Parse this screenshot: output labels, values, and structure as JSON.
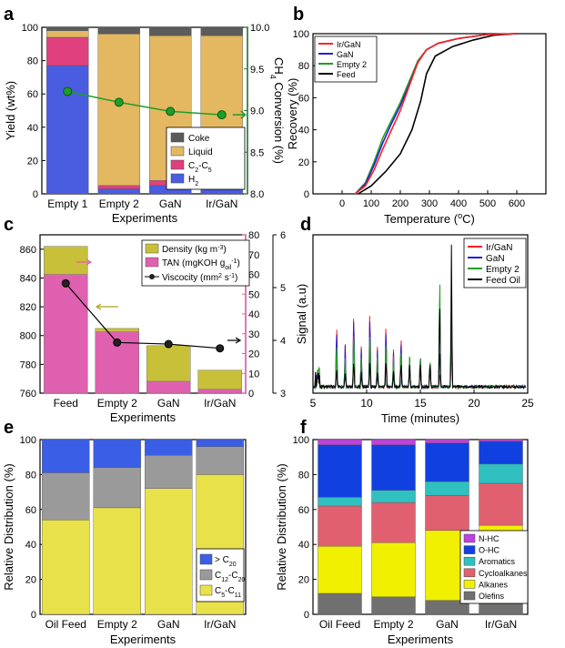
{
  "colors": {
    "coke": "#5b5b5b",
    "liquid": "#e3b860",
    "c2c5": "#e0407e",
    "h2": "#4a5ce0",
    "conv": "#1e9e28",
    "convAxis": "#1f7a3e",
    "irgan": "#ff2020",
    "gan": "#2020e0",
    "empty2": "#20a020",
    "feed": "#000000",
    "density": "#c8c038",
    "tan": "#e060b0",
    "visc": "#111111",
    "gt20": "#3b5ee6",
    "c12": "#9a9a9a",
    "c5": "#e9e14a",
    "nhc": "#c040e0",
    "ohc": "#1040e0",
    "arom": "#30c0c0",
    "cyclo": "#e06070",
    "alk": "#f0f000",
    "olef": "#707070"
  },
  "chart_data": [
    {
      "panel": "a",
      "type": "bar",
      "stacked": true,
      "xlabel": "Experiments",
      "ylabel": "Yield (wt%)",
      "y2label": "CH4 Conversion (%)",
      "categories": [
        "Empty 1",
        "Empty 2",
        "GaN",
        "Ir/GaN"
      ],
      "ylim": [
        0,
        100
      ],
      "y2lim": [
        8.0,
        10.0
      ],
      "yticks": [
        "0",
        "20",
        "40",
        "60",
        "80",
        "100"
      ],
      "y2ticks": [
        "8.0",
        "8.5",
        "9.0",
        "9.5",
        "10.0"
      ],
      "series": [
        {
          "name": "H2",
          "values": [
            77,
            3,
            5,
            5
          ]
        },
        {
          "name": "C2-C5",
          "values": [
            17,
            2,
            3,
            3
          ]
        },
        {
          "name": "Liquid",
          "values": [
            4,
            91,
            87,
            87
          ]
        },
        {
          "name": "Coke",
          "values": [
            2,
            4,
            5,
            5
          ]
        }
      ],
      "line": {
        "values": [
          9.23,
          9.1,
          8.99,
          8.95
        ]
      },
      "legend": [
        "Coke",
        "Liquid",
        "C2-C5",
        "H2"
      ]
    },
    {
      "panel": "b",
      "type": "line",
      "xlabel": "Temperature (°C)",
      "ylabel": "Recovery (%)",
      "xlim": [
        -100,
        700
      ],
      "ylim": [
        0,
        100
      ],
      "xticks": [
        "0",
        "100",
        "200",
        "300",
        "400",
        "500",
        "600"
      ],
      "yticks": [
        "0",
        "20",
        "40",
        "60",
        "80",
        "100"
      ],
      "series": [
        {
          "name": "Ir/GaN",
          "points": [
            [
              45,
              0
            ],
            [
              80,
              5
            ],
            [
              110,
              15
            ],
            [
              140,
              28
            ],
            [
              170,
              40
            ],
            [
              200,
              52
            ],
            [
              230,
              67
            ],
            [
              260,
              82
            ],
            [
              290,
              90
            ],
            [
              330,
              94
            ],
            [
              400,
              97
            ],
            [
              500,
              99.5
            ],
            [
              600,
              100
            ]
          ]
        },
        {
          "name": "GaN",
          "points": [
            [
              45,
              0
            ],
            [
              80,
              6
            ],
            [
              110,
              18
            ],
            [
              140,
              32
            ],
            [
              170,
              44
            ],
            [
              200,
              55
            ],
            [
              230,
              68
            ],
            [
              260,
              82
            ],
            [
              290,
              90
            ],
            [
              330,
              94
            ],
            [
              400,
              97
            ],
            [
              500,
              99.5
            ],
            [
              600,
              100
            ]
          ]
        },
        {
          "name": "Empty 2",
          "points": [
            [
              45,
              0
            ],
            [
              80,
              7
            ],
            [
              110,
              20
            ],
            [
              140,
              35
            ],
            [
              170,
              46
            ],
            [
              200,
              57
            ],
            [
              230,
              70
            ],
            [
              260,
              83
            ],
            [
              290,
              90
            ],
            [
              330,
              94
            ],
            [
              400,
              97
            ],
            [
              500,
              99.5
            ],
            [
              600,
              100
            ]
          ]
        },
        {
          "name": "Feed",
          "points": [
            [
              55,
              0
            ],
            [
              100,
              5
            ],
            [
              150,
              14
            ],
            [
              200,
              25
            ],
            [
              240,
              40
            ],
            [
              270,
              58
            ],
            [
              290,
              75
            ],
            [
              320,
              86
            ],
            [
              380,
              92
            ],
            [
              450,
              96
            ],
            [
              520,
              99
            ],
            [
              600,
              100
            ]
          ]
        }
      ]
    },
    {
      "panel": "c",
      "type": "bar",
      "xlabel": "Experiments",
      "ylabel": "",
      "ylim": [
        760,
        870
      ],
      "y2lim": [
        0,
        80
      ],
      "y3lim": [
        3,
        6
      ],
      "categories": [
        "Feed",
        "Empty 2",
        "GaN",
        "Ir/GaN"
      ],
      "yticks": [
        "760",
        "780",
        "800",
        "820",
        "840",
        "860"
      ],
      "y2ticks": [
        "0",
        "10",
        "20",
        "30",
        "40",
        "50",
        "60",
        "70",
        "80"
      ],
      "y3ticks": [
        "3",
        "4",
        "5",
        "6"
      ],
      "series": [
        {
          "name": "Density (kg m-3)",
          "values": [
            862,
            805,
            793,
            776
          ]
        },
        {
          "name": "TAN (mgKOH goil-1)",
          "values": [
            60,
            31,
            6,
            2
          ]
        },
        {
          "name": "Viscocity (mm2 s-1)",
          "values": [
            5.08,
            3.96,
            3.93,
            3.85
          ]
        }
      ]
    },
    {
      "panel": "d",
      "type": "line",
      "xlabel": "Time (minutes)",
      "ylabel": "Signal (a.u)",
      "xlim": [
        5,
        25
      ],
      "xticks": [
        "5",
        "10",
        "15",
        "20",
        "25"
      ],
      "series": [
        {
          "name": "Ir/GaN",
          "peaks": [
            [
              7.2,
              0.5
            ],
            [
              8.0,
              0.3
            ],
            [
              8.8,
              0.6
            ],
            [
              9.5,
              0.28
            ],
            [
              10.3,
              0.63
            ],
            [
              11.0,
              0.27
            ],
            [
              11.8,
              0.5
            ],
            [
              12.5,
              0.25
            ],
            [
              13.2,
              0.4
            ],
            [
              14.0,
              0.2
            ],
            [
              15.0,
              0.25
            ],
            [
              15.9,
              0.15
            ],
            [
              16.8,
              0.1
            ],
            [
              17.9,
              0.3
            ]
          ]
        },
        {
          "name": "GaN",
          "peaks": [
            [
              7.2,
              0.46
            ],
            [
              8.0,
              0.28
            ],
            [
              8.8,
              0.56
            ],
            [
              9.5,
              0.26
            ],
            [
              10.3,
              0.58
            ],
            [
              11.0,
              0.25
            ],
            [
              11.8,
              0.46
            ],
            [
              12.5,
              0.23
            ],
            [
              13.2,
              0.37
            ],
            [
              14.0,
              0.2
            ],
            [
              15.0,
              0.26
            ],
            [
              15.9,
              0.2
            ],
            [
              16.8,
              0.3
            ],
            [
              17.9,
              0.5
            ]
          ]
        },
        {
          "name": "Empty 2",
          "peaks": [
            [
              7.2,
              0.35
            ],
            [
              8.0,
              0.2
            ],
            [
              8.8,
              0.45
            ],
            [
              9.5,
              0.2
            ],
            [
              10.3,
              0.45
            ],
            [
              11.0,
              0.2
            ],
            [
              11.8,
              0.35
            ],
            [
              12.5,
              0.2
            ],
            [
              13.2,
              0.3
            ],
            [
              14.0,
              0.2
            ],
            [
              15.0,
              0.26
            ],
            [
              15.9,
              0.22
            ],
            [
              16.8,
              0.9
            ],
            [
              17.9,
              0.6
            ]
          ]
        },
        {
          "name": "Feed Oil",
          "peaks": [
            [
              7.2,
              0.15
            ],
            [
              8.0,
              0.1
            ],
            [
              8.8,
              0.2
            ],
            [
              9.5,
              0.1
            ],
            [
              10.3,
              0.2
            ],
            [
              11.0,
              0.1
            ],
            [
              11.8,
              0.2
            ],
            [
              12.5,
              0.1
            ],
            [
              13.2,
              0.2
            ],
            [
              14.0,
              0.15
            ],
            [
              15.0,
              0.2
            ],
            [
              15.9,
              0.2
            ],
            [
              16.8,
              0.7
            ],
            [
              17.9,
              0.97
            ]
          ]
        }
      ]
    },
    {
      "panel": "e",
      "type": "bar",
      "stacked": true,
      "xlabel": "Experiments",
      "ylabel": "Relative Distribution (%)",
      "ylim": [
        0,
        100
      ],
      "categories": [
        "Oil Feed",
        "Empty 2",
        "GaN",
        "Ir/GaN"
      ],
      "yticks": [
        "0",
        "20",
        "40",
        "60",
        "80",
        "100"
      ],
      "series": [
        {
          "name": "C5-C11",
          "values": [
            54,
            61,
            72,
            80
          ]
        },
        {
          "name": "C12-C20",
          "values": [
            27,
            23,
            19,
            16
          ]
        },
        {
          "name": "> C20",
          "values": [
            19,
            16,
            9,
            4
          ]
        }
      ],
      "legend": [
        "> C20",
        "C12-C20",
        "C5-C11"
      ]
    },
    {
      "panel": "f",
      "type": "bar",
      "stacked": true,
      "xlabel": "Experiments",
      "ylabel": "Relative Distribution (%)",
      "ylim": [
        0,
        100
      ],
      "categories": [
        "Oil Feed",
        "Empty 2",
        "GaN",
        "Ir/GaN"
      ],
      "yticks": [
        "0",
        "20",
        "40",
        "60",
        "80",
        "100"
      ],
      "series": [
        {
          "name": "Olefins",
          "values": [
            12,
            10,
            8,
            6
          ]
        },
        {
          "name": "Alkanes",
          "values": [
            27,
            31,
            40,
            45
          ]
        },
        {
          "name": "Cycloalkanes",
          "values": [
            23,
            23,
            20,
            24
          ]
        },
        {
          "name": "Aromatics",
          "values": [
            5,
            7,
            8,
            11
          ]
        },
        {
          "name": "O-HC",
          "values": [
            30,
            26,
            22,
            13
          ]
        },
        {
          "name": "N-HC",
          "values": [
            3,
            3,
            2,
            1
          ]
        }
      ],
      "legend": [
        "N-HC",
        "O-HC",
        "Aromatics",
        "Cycloalkanes",
        "Alkanes",
        "Olefins"
      ]
    }
  ]
}
